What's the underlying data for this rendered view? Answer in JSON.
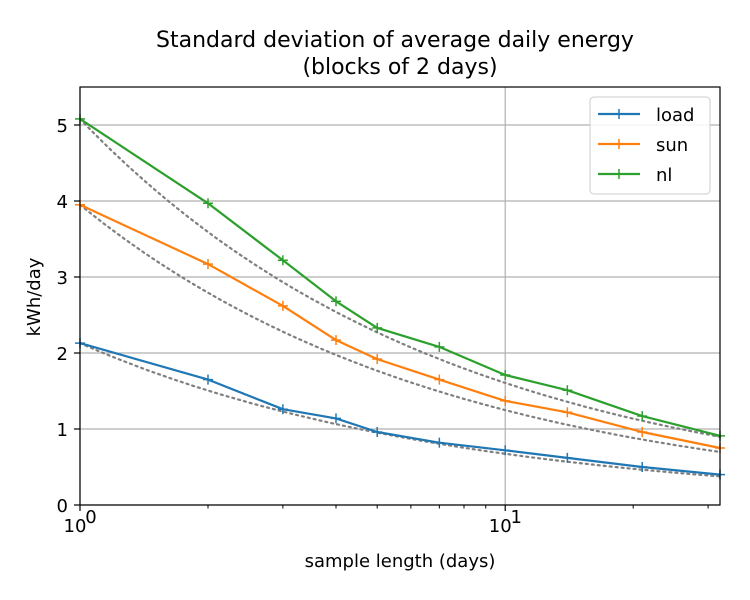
{
  "chart_data": {
    "type": "line",
    "title": "Standard deviation of average daily energy\n(blocks of 2 days)",
    "xlabel": "sample length (days)",
    "ylabel": "kWh/day",
    "xscale": "log",
    "xlim": [
      1,
      32
    ],
    "ylim": [
      0,
      5.5
    ],
    "xticks": [
      {
        "value": 1,
        "label": "10",
        "exp": "0"
      },
      {
        "value": 10,
        "label": "10",
        "exp": "1"
      }
    ],
    "xminor": [
      2,
      3,
      4,
      5,
      6,
      7,
      8,
      9,
      20,
      30
    ],
    "yticks": [
      0,
      1,
      2,
      3,
      4,
      5
    ],
    "grid": true,
    "legend_position": "top-right",
    "x": [
      1,
      2,
      3,
      4,
      5,
      7,
      10,
      14,
      21,
      32
    ],
    "series": [
      {
        "name": "load",
        "color": "#1f77b4",
        "marker": "+",
        "values": [
          2.13,
          1.65,
          1.26,
          1.14,
          0.96,
          0.82,
          0.72,
          0.62,
          0.5,
          0.4
        ]
      },
      {
        "name": "sun",
        "color": "#ff7f0e",
        "marker": "+",
        "values": [
          3.95,
          3.17,
          2.62,
          2.17,
          1.92,
          1.65,
          1.37,
          1.22,
          0.96,
          0.75
        ]
      },
      {
        "name": "nl",
        "color": "#2ca02c",
        "marker": "+",
        "values": [
          5.08,
          3.97,
          3.22,
          2.68,
          2.33,
          2.08,
          1.71,
          1.51,
          1.17,
          0.91
        ]
      }
    ],
    "reference_lines": {
      "style": "dotted",
      "color": "#808080",
      "form": "sigma1 / sqrt(x)",
      "sigma1": [
        2.13,
        3.95,
        5.08
      ]
    }
  }
}
